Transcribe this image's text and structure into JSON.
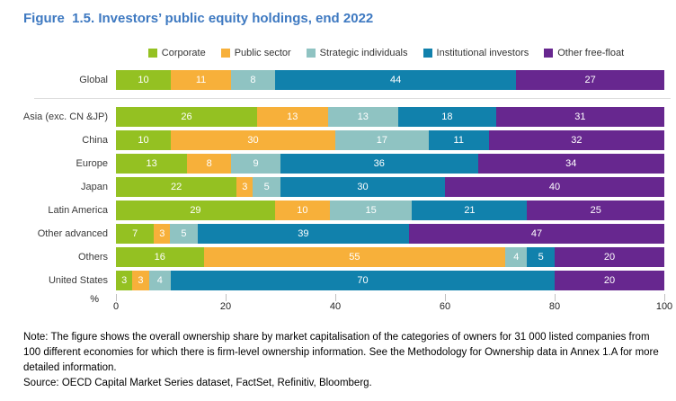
{
  "title": "Figure  1.5. Investors’ public equity holdings, end 2022",
  "title_color": "#3E79C1",
  "chart_data": {
    "type": "bar",
    "stacked": true,
    "orientation": "horizontal",
    "unit": "%",
    "xlim": [
      0,
      100
    ],
    "x_ticks": [
      0,
      20,
      40,
      60,
      80,
      100
    ],
    "legend_position": "top",
    "series": [
      {
        "name": "Corporate",
        "color": "#94C122"
      },
      {
        "name": "Public sector",
        "color": "#F7B03A"
      },
      {
        "name": "Strategic individuals",
        "color": "#8FC3C2"
      },
      {
        "name": "Institutional investors",
        "color": "#1181AC"
      },
      {
        "name": "Other free-float",
        "color": "#67278F"
      }
    ],
    "rows": [
      {
        "category": "Global",
        "values": [
          10,
          11,
          8,
          44,
          27
        ]
      },
      {
        "category": "Asia (exc. CN &JP)",
        "values": [
          26,
          13,
          13,
          18,
          31
        ]
      },
      {
        "category": "China",
        "values": [
          10,
          30,
          17,
          11,
          32
        ]
      },
      {
        "category": "Europe",
        "values": [
          13,
          8,
          9,
          36,
          34
        ]
      },
      {
        "category": "Japan",
        "values": [
          22,
          3,
          5,
          30,
          40
        ]
      },
      {
        "category": "Latin America",
        "values": [
          29,
          10,
          15,
          21,
          25
        ]
      },
      {
        "category": "Other advanced",
        "values": [
          7,
          3,
          5,
          39,
          47
        ]
      },
      {
        "category": "Others",
        "values": [
          16,
          55,
          4,
          5,
          20
        ]
      },
      {
        "category": "United States",
        "values": [
          3,
          3,
          4,
          70,
          20
        ]
      }
    ]
  },
  "note": "Note: The figure shows the overall ownership share by market capitalisation of the categories of owners for 31 000 listed companies from 100 different economies for which there is firm-level ownership information. See the Methodology for Ownership data in Annex 1.A for more detailed information.",
  "source": "Source: OECD Capital Market Series dataset, FactSet, Refinitiv, Bloomberg."
}
